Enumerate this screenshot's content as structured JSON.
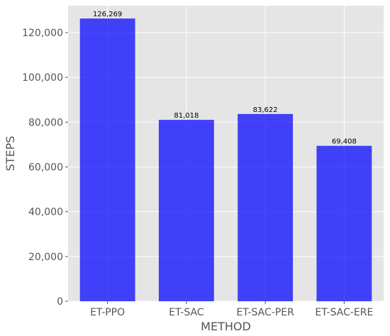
{
  "chart_data": {
    "type": "bar",
    "categories": [
      "ET-PPO",
      "ET-SAC",
      "ET-SAC-PER",
      "ET-SAC-ERE"
    ],
    "values": [
      126269,
      81018,
      83622,
      69408
    ],
    "value_labels": [
      "126,269",
      "81,018",
      "83,622",
      "69,408"
    ],
    "xlabel": "METHOD",
    "ylabel": "STEPS",
    "ylim": [
      0,
      132000
    ],
    "yticks": [
      0,
      20000,
      40000,
      60000,
      80000,
      100000,
      120000
    ],
    "ytick_labels": [
      "0",
      "20,000",
      "40,000",
      "60,000",
      "80,000",
      "100,000",
      "120,000"
    ],
    "grid": true,
    "legend": "none",
    "colors": {
      "bar": "#0000ff",
      "plot_background": "#e5e5e5",
      "grid": "#ffffff"
    }
  }
}
